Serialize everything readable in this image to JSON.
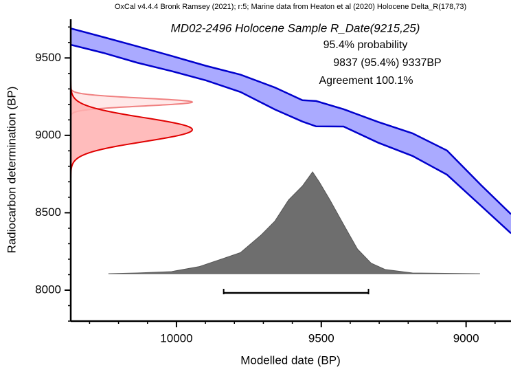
{
  "chart_data": {
    "type": "calibration",
    "header": "OxCal v4.4.4 Bronk Ramsey (2021); r:5; Marine data from Heaton et al (2020) Holocene Delta_R(178,73)",
    "title": "MD02-2496 Holocene Sample R_Date(9215,25)",
    "annotations": [
      "95.4% probability",
      "9837 (95.4%) 9337BP",
      "Agreement 100.1%"
    ],
    "x_label": "Modelled date (BP)",
    "y_label": "Radiocarbon determination (BP)",
    "xlim": [
      10365,
      8845
    ],
    "ylim": [
      7800,
      9750
    ],
    "xticks": [
      10000,
      9500,
      9000
    ],
    "yticks": [
      8000,
      8500,
      9000,
      9500
    ],
    "minor_step": 100,
    "calibration_curve": {
      "color": "#0000cc",
      "fill": "#aaaaff",
      "x": [
        10365,
        10253,
        10135,
        10017,
        9898,
        9779,
        9660,
        9565,
        9518,
        9423,
        9304,
        9185,
        9066,
        8948,
        8845
      ],
      "values": [
        9638,
        9584,
        9522,
        9464,
        9402,
        9336,
        9238,
        9158,
        9140,
        9113,
        9020,
        8940,
        8824,
        8611,
        8429
      ],
      "sigma": [
        53,
        51,
        53,
        49,
        47,
        56,
        71,
        69,
        82,
        56,
        67,
        73,
        78,
        67,
        62
      ]
    },
    "raw_date": {
      "mean": 9215,
      "sd": 25,
      "color": "#f08080",
      "fill": "#ffe4e4"
    },
    "radiocarbon": {
      "mean": 9037,
      "sd": 77,
      "color": "#e00000",
      "fill": "#ffb0b0"
    },
    "posterior": {
      "color": "#555555",
      "fill": "#6e6e6e",
      "x": [
        10235,
        10135,
        10017,
        9922,
        9850,
        9779,
        9708,
        9660,
        9613,
        9565,
        9530,
        9506,
        9470,
        9423,
        9375,
        9328,
        9280,
        9185,
        8952
      ],
      "values": [
        0,
        1,
        3,
        10,
        20,
        30,
        55,
        75,
        105,
        125,
        145,
        130,
        105,
        70,
        35,
        15,
        6,
        1,
        0
      ]
    },
    "range": [
      9837,
      9337
    ]
  }
}
